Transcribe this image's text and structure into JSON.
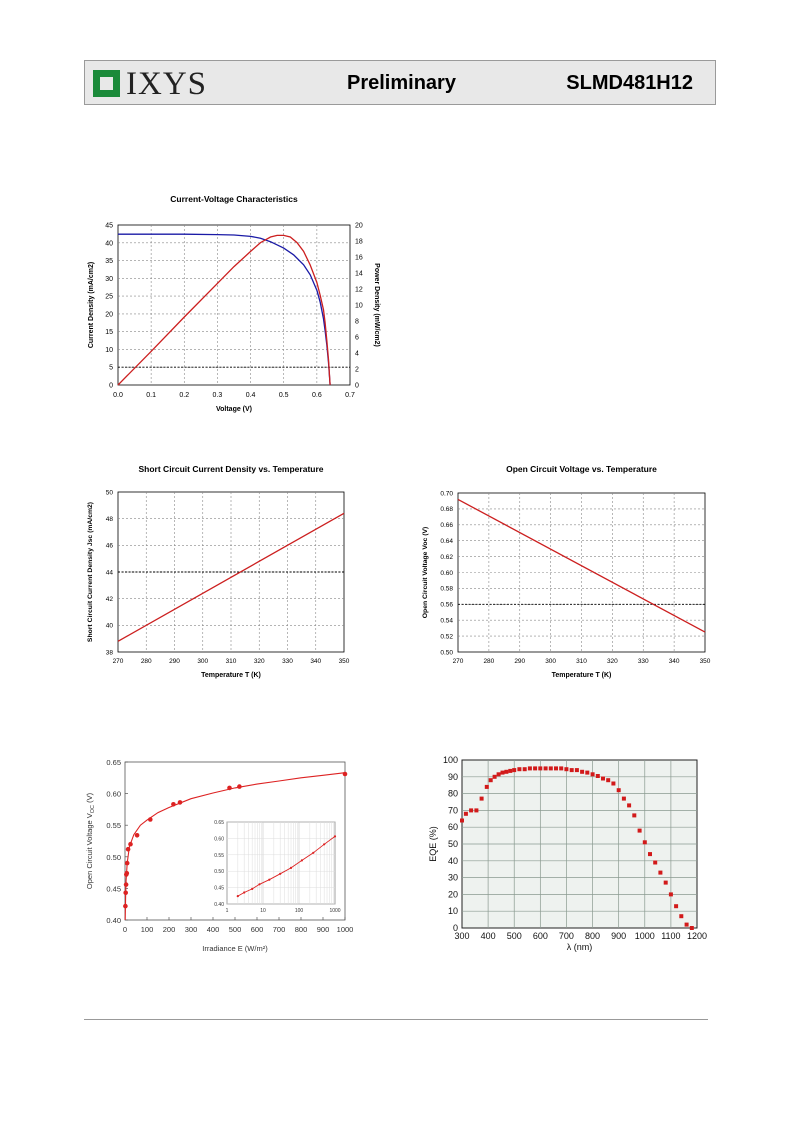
{
  "header": {
    "logo_text": "IXYS",
    "doc_status": "Preliminary",
    "part_number": "SLMD481H12"
  },
  "chart_data": [
    {
      "id": "iv",
      "type": "line",
      "title": "Current-Voltage Characteristics",
      "xlabel": "Voltage (V)",
      "ylabel": "Current Density (mA/cm2)",
      "y2label": "Power Density (mW/cm2)",
      "xlim": [
        0,
        0.7
      ],
      "ylim": [
        0,
        45
      ],
      "y2lim": [
        0,
        20
      ],
      "xticks": [
        "0.0",
        "0.1",
        "0.2",
        "0.3",
        "0.4",
        "0.5",
        "0.6",
        "0.7"
      ],
      "yticks": [
        "0",
        "5",
        "10",
        "15",
        "20",
        "25",
        "30",
        "35",
        "40",
        "45"
      ],
      "y2ticks": [
        "0",
        "2",
        "4",
        "6",
        "8",
        "10",
        "12",
        "14",
        "16",
        "18",
        "20"
      ],
      "grid": true,
      "series": [
        {
          "axis": "left",
          "color": "#1a1aa6",
          "x": [
            0,
            0.1,
            0.2,
            0.3,
            0.35,
            0.4,
            0.43,
            0.46,
            0.5,
            0.53,
            0.56,
            0.58,
            0.6,
            0.61,
            0.62,
            0.625,
            0.63,
            0.635,
            0.64
          ],
          "y": [
            42.4,
            42.4,
            42.4,
            42.3,
            42.2,
            41.8,
            41.3,
            40.3,
            38.5,
            36.6,
            33.8,
            31.0,
            26.6,
            23.3,
            18.6,
            15.3,
            11.3,
            6.3,
            0
          ]
        },
        {
          "axis": "right",
          "color": "#cc1f1f",
          "x": [
            0,
            0.1,
            0.2,
            0.3,
            0.35,
            0.4,
            0.43,
            0.46,
            0.48,
            0.5,
            0.52,
            0.54,
            0.56,
            0.58,
            0.6,
            0.61,
            0.62,
            0.625,
            0.63,
            0.635,
            0.64
          ],
          "y": [
            0,
            4.2,
            8.5,
            12.7,
            14.8,
            16.7,
            17.8,
            18.5,
            18.7,
            18.7,
            18.5,
            17.8,
            16.7,
            15.0,
            12.8,
            11.2,
            9.4,
            7.8,
            5.6,
            3.2,
            0
          ]
        }
      ],
      "reference_line": {
        "y": 5,
        "style": "dotted"
      }
    },
    {
      "id": "jsc",
      "type": "line",
      "title": "Short Circuit Current Density vs. Temperature",
      "xlabel": "Temperature T (K)",
      "ylabel": "Short Circuit Current Density Jsc (mA/cm2)",
      "xlim": [
        270,
        350
      ],
      "ylim": [
        38,
        50
      ],
      "xticks": [
        "270",
        "280",
        "290",
        "300",
        "310",
        "320",
        "330",
        "340",
        "350"
      ],
      "yticks": [
        "38",
        "40",
        "42",
        "44",
        "46",
        "48",
        "50"
      ],
      "grid": true,
      "series": [
        {
          "color": "#cc1f1f",
          "x": [
            270,
            350
          ],
          "y": [
            38.8,
            48.4
          ]
        }
      ],
      "reference_line": {
        "y": 44,
        "style": "dotted"
      }
    },
    {
      "id": "voc_t",
      "type": "line",
      "title": "Open Circuit Voltage vs. Temperature",
      "xlabel": "Temperature T (K)",
      "ylabel": "Open Circuit Voltage Voc (V)",
      "xlim": [
        270,
        350
      ],
      "ylim": [
        0.5,
        0.7
      ],
      "xticks": [
        "270",
        "280",
        "290",
        "300",
        "310",
        "320",
        "330",
        "340",
        "350"
      ],
      "yticks": [
        "0.50",
        "0.52",
        "0.54",
        "0.56",
        "0.58",
        "0.60",
        "0.62",
        "0.64",
        "0.66",
        "0.68",
        "0.70"
      ],
      "grid": true,
      "series": [
        {
          "color": "#cc1f1f",
          "x": [
            270,
            350
          ],
          "y": [
            0.692,
            0.525
          ]
        }
      ],
      "reference_line": {
        "y": 0.56,
        "style": "dotted"
      }
    },
    {
      "id": "voc_e",
      "type": "scatter",
      "title": "",
      "xlabel": "Irradiance E (W/m²)",
      "ylabel_main": "Open Circuit Voltage V",
      "ylabel_sub": "OC",
      "ylabel_unit": " (V)",
      "xlim": [
        0,
        1000
      ],
      "ylim": [
        0.4,
        0.65
      ],
      "xticks": [
        "0",
        "100",
        "200",
        "300",
        "400",
        "500",
        "600",
        "700",
        "800",
        "900",
        "1000"
      ],
      "yticks": [
        "0.40",
        "0.45",
        "0.50",
        "0.55",
        "0.60",
        "0.65"
      ],
      "grid": false,
      "points": {
        "x": [
          2,
          3,
          5,
          6,
          8,
          10,
          14,
          25,
          55,
          115,
          220,
          250,
          475,
          520,
          1000
        ],
        "y": [
          0.422,
          0.443,
          0.456,
          0.472,
          0.474,
          0.49,
          0.512,
          0.52,
          0.534,
          0.559,
          0.583,
          0.586,
          0.609,
          0.611,
          0.631
        ]
      },
      "fit": {
        "x": [
          1,
          3,
          5,
          10,
          20,
          40,
          70,
          100,
          150,
          200,
          300,
          400,
          500,
          600,
          700,
          800,
          900,
          1000
        ],
        "y": [
          0.4,
          0.443,
          0.463,
          0.49,
          0.516,
          0.535,
          0.55,
          0.558,
          0.57,
          0.578,
          0.592,
          0.601,
          0.609,
          0.615,
          0.62,
          0.625,
          0.629,
          0.633
        ]
      },
      "inset": {
        "xscale": "log",
        "xlim": [
          1,
          1000
        ],
        "ylim": [
          0.4,
          0.65
        ],
        "xticks": [
          "1",
          "10",
          "100",
          "1000"
        ],
        "yticks": [
          "0.40",
          "0.45",
          "0.50",
          "0.55",
          "0.60",
          "0.65"
        ],
        "points": {
          "x": [
            2,
            3,
            5,
            8,
            15,
            30,
            60,
            120,
            250,
            500,
            1000
          ],
          "y": [
            0.424,
            0.435,
            0.446,
            0.46,
            0.474,
            0.492,
            0.51,
            0.533,
            0.556,
            0.582,
            0.606
          ]
        }
      }
    },
    {
      "id": "eqe",
      "type": "scatter",
      "title": "",
      "xlabel": "λ (nm)",
      "ylabel": "EQE (%)",
      "xlim": [
        300,
        1200
      ],
      "ylim": [
        0,
        100
      ],
      "xticks": [
        "300",
        "400",
        "500",
        "600",
        "700",
        "800",
        "900",
        "1000",
        "1100",
        "1200"
      ],
      "yticks": [
        "0",
        "10",
        "20",
        "30",
        "40",
        "50",
        "60",
        "70",
        "80",
        "90",
        "100"
      ],
      "grid": true,
      "points": {
        "x": [
          300,
          315,
          335,
          355,
          375,
          395,
          410,
          425,
          440,
          455,
          470,
          485,
          500,
          520,
          540,
          560,
          580,
          600,
          620,
          640,
          660,
          680,
          700,
          720,
          740,
          760,
          780,
          800,
          820,
          840,
          860,
          880,
          900,
          920,
          940,
          960,
          980,
          1000,
          1020,
          1040,
          1060,
          1080,
          1100,
          1120,
          1140,
          1160,
          1180
        ],
        "y": [
          64,
          68,
          70,
          70,
          77,
          84,
          88,
          90,
          91.5,
          92.5,
          93,
          93.5,
          94,
          94.5,
          94.5,
          95,
          95,
          95,
          95,
          95,
          95,
          95,
          94.5,
          94,
          94,
          93,
          92.5,
          91.5,
          90.5,
          89,
          88,
          86,
          82,
          77,
          73,
          67,
          58,
          51,
          44,
          39,
          33,
          27,
          20,
          13,
          7,
          2,
          0
        ]
      }
    }
  ]
}
